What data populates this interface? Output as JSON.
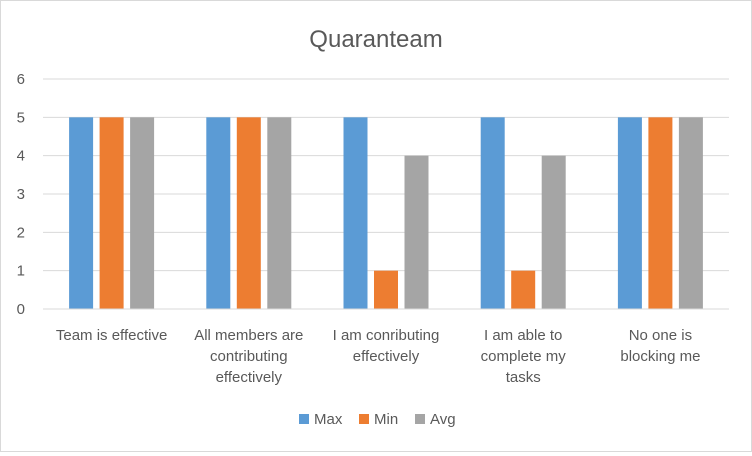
{
  "chart_data": {
    "type": "bar",
    "title": "Quaranteam",
    "xlabel": "",
    "ylabel": "",
    "ylim": [
      0,
      6
    ],
    "yticks": [
      0,
      1,
      2,
      3,
      4,
      5,
      6
    ],
    "grid": true,
    "legend_position": "bottom",
    "categories": [
      [
        "Team is effective"
      ],
      [
        "All members are",
        "contributing",
        "effectively"
      ],
      [
        "I am conributing",
        "effectively"
      ],
      [
        "I am able to",
        "complete my",
        "tasks"
      ],
      [
        "No one is",
        "blocking me"
      ]
    ],
    "series": [
      {
        "name": "Max",
        "color": "#5b9bd5",
        "values": [
          5,
          5,
          5,
          5,
          5
        ]
      },
      {
        "name": "Min",
        "color": "#ed7d31",
        "values": [
          5,
          5,
          1,
          1,
          5
        ]
      },
      {
        "name": "Avg",
        "color": "#a5a5a5",
        "values": [
          5,
          5,
          4,
          4,
          5
        ]
      }
    ]
  }
}
